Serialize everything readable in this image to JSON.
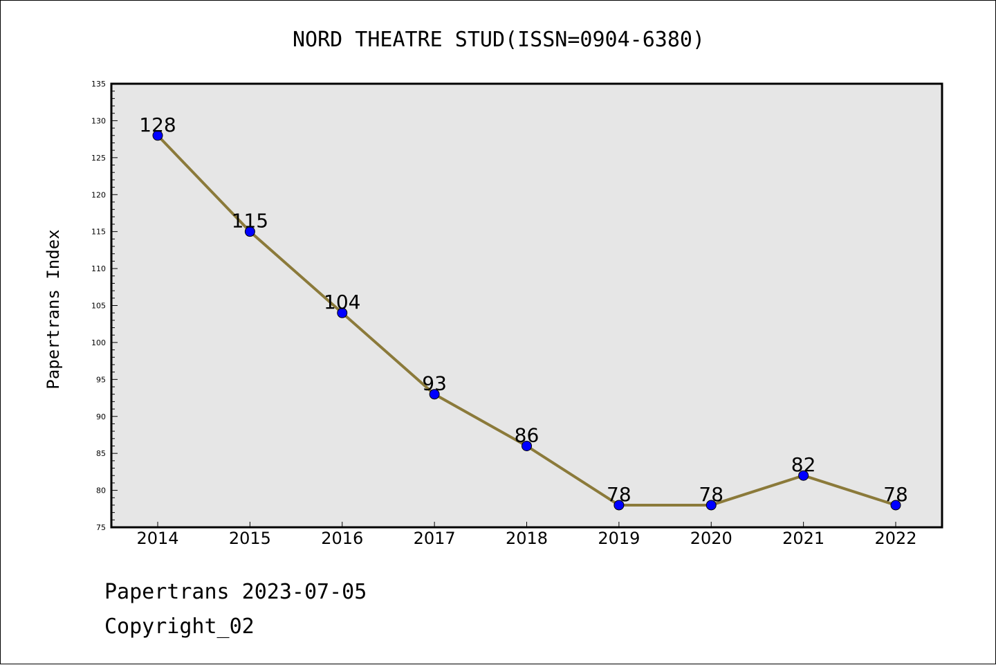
{
  "chart_data": {
    "type": "line",
    "title": "NORD THEATRE STUD(ISSN=0904-6380)",
    "ylabel": "Papertrans Index",
    "xlabel": "",
    "categories": [
      "2014",
      "2015",
      "2016",
      "2017",
      "2018",
      "2019",
      "2020",
      "2021",
      "2022"
    ],
    "series": [
      {
        "values": [
          128,
          115,
          104,
          93,
          86,
          78,
          78,
          82,
          78
        ]
      }
    ],
    "ylim": [
      75,
      135
    ],
    "yticks": [
      75,
      80,
      85,
      90,
      95,
      100,
      105,
      110,
      115,
      120,
      125,
      130,
      135
    ],
    "data_labels": [
      "128",
      "115",
      "104",
      "93",
      "86",
      "78",
      "78",
      "82",
      "78"
    ],
    "line_color": "#8b7a3a",
    "marker_color": "#0000ff",
    "plot_background": "#e6e6e6",
    "grid": false,
    "legend": "none"
  },
  "footer": {
    "line1": "Papertrans 2023-07-05",
    "line2": "Copyright_02"
  }
}
